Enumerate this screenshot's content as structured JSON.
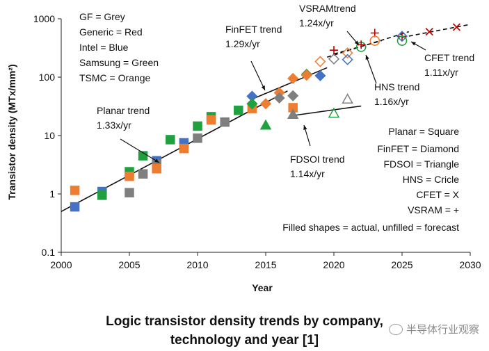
{
  "chart_data": {
    "type": "scatter",
    "title": "Logic transistor density trends by company, technology and year [1]",
    "xlabel": "Year",
    "ylabel": "Transistor density (MTx/mm²)",
    "xlim": [
      2000,
      2030
    ],
    "ylim": [
      0.1,
      1000
    ],
    "yscale": "log",
    "xticks": [
      2000,
      2005,
      2010,
      2015,
      2020,
      2025,
      2030
    ],
    "yticks": [
      {
        "value": 0.1,
        "label": "0.1"
      },
      {
        "value": 1,
        "label": "1"
      },
      {
        "value": 10,
        "label": "10"
      },
      {
        "value": 100,
        "label": "100"
      },
      {
        "value": 1000,
        "label": "1000"
      }
    ],
    "colors": {
      "GF": "#7f7f7f",
      "Generic": "#c00000",
      "Intel": "#4472c4",
      "Samsung": "#21a040",
      "TSMC": "#ed7d31"
    },
    "company_legend": [
      "GF = Grey",
      "Generic = Red",
      "Intel = Blue",
      "Samsung = Green",
      "TSMC = Orange"
    ],
    "shape_legend": [
      "Planar = Square",
      "FinFET = Diamond",
      "FDSOI = Triangle",
      "HNS = Cricle",
      "CFET = X",
      "VSRAM = +",
      "Filled shapes = actual, unfilled = forecast"
    ],
    "trends": [
      {
        "name": "Planar trend",
        "rate": "1.33x/yr",
        "from": [
          2000,
          0.5
        ],
        "to": [
          2016.6,
          58
        ],
        "style": "solid"
      },
      {
        "name": "FinFET trend",
        "rate": "1.29x/yr",
        "from": [
          2014,
          42
        ],
        "to": [
          2019.5,
          145
        ],
        "style": "solid"
      },
      {
        "name": "FDSOI trend",
        "rate": "1.14x/yr",
        "from": [
          2017,
          22
        ],
        "to": [
          2022,
          32
        ],
        "style": "solid"
      },
      {
        "name": "HNS trend",
        "rate": "1.16x/yr",
        "from": [
          2019.5,
          220
        ],
        "to": [
          2025.5,
          600
        ],
        "style": "dashed"
      },
      {
        "name": "CFET trend",
        "rate": "1.11x/yr",
        "from": [
          2025,
          480
        ],
        "to": [
          2030,
          800
        ],
        "style": "dashed"
      },
      {
        "name": "VSRAMtrend",
        "rate": "1.24x/yr",
        "from": [
          2020,
          250
        ],
        "to": [
          2023.5,
          420
        ],
        "style": "dashed"
      }
    ],
    "points": [
      {
        "x": 2001,
        "y": 1.15,
        "shape": "square",
        "company": "TSMC",
        "filled": true
      },
      {
        "x": 2001,
        "y": 0.6,
        "shape": "square",
        "company": "Intel",
        "filled": true
      },
      {
        "x": 2003,
        "y": 1.1,
        "shape": "square",
        "company": "Intel",
        "filled": true
      },
      {
        "x": 2003,
        "y": 0.95,
        "shape": "square",
        "company": "Samsung",
        "filled": true
      },
      {
        "x": 2005,
        "y": 2.4,
        "shape": "square",
        "company": "Samsung",
        "filled": true
      },
      {
        "x": 2005,
        "y": 2.0,
        "shape": "square",
        "company": "TSMC",
        "filled": true
      },
      {
        "x": 2005,
        "y": 1.05,
        "shape": "square",
        "company": "GF",
        "filled": true
      },
      {
        "x": 2006,
        "y": 4.5,
        "shape": "square",
        "company": "Samsung",
        "filled": true
      },
      {
        "x": 2006,
        "y": 2.2,
        "shape": "square",
        "company": "GF",
        "filled": true
      },
      {
        "x": 2007,
        "y": 3.7,
        "shape": "square",
        "company": "Intel",
        "filled": true
      },
      {
        "x": 2007,
        "y": 3.2,
        "shape": "square",
        "company": "GF",
        "filled": true
      },
      {
        "x": 2007,
        "y": 2.7,
        "shape": "square",
        "company": "TSMC",
        "filled": true
      },
      {
        "x": 2008,
        "y": 8.5,
        "shape": "square",
        "company": "Samsung",
        "filled": true
      },
      {
        "x": 2009,
        "y": 7.5,
        "shape": "square",
        "company": "Intel",
        "filled": true
      },
      {
        "x": 2009,
        "y": 6.0,
        "shape": "square",
        "company": "TSMC",
        "filled": true
      },
      {
        "x": 2010,
        "y": 14.5,
        "shape": "square",
        "company": "Samsung",
        "filled": true
      },
      {
        "x": 2010,
        "y": 9.0,
        "shape": "square",
        "company": "GF",
        "filled": true
      },
      {
        "x": 2011,
        "y": 21,
        "shape": "square",
        "company": "Samsung",
        "filled": true
      },
      {
        "x": 2011,
        "y": 18.5,
        "shape": "square",
        "company": "TSMC",
        "filled": true
      },
      {
        "x": 2012,
        "y": 17,
        "shape": "square",
        "company": "GF",
        "filled": true
      },
      {
        "x": 2013,
        "y": 27,
        "shape": "square",
        "company": "Samsung",
        "filled": true
      },
      {
        "x": 2014,
        "y": 29,
        "shape": "square",
        "company": "TSMC",
        "filled": true
      },
      {
        "x": 2014,
        "y": 47,
        "shape": "diamond",
        "company": "Intel",
        "filled": true
      },
      {
        "x": 2014,
        "y": 35,
        "shape": "diamond",
        "company": "Samsung",
        "filled": true
      },
      {
        "x": 2015,
        "y": 35,
        "shape": "diamond",
        "company": "TSMC",
        "filled": true
      },
      {
        "x": 2015,
        "y": 15,
        "shape": "triangle",
        "company": "Samsung",
        "filled": true
      },
      {
        "x": 2016,
        "y": 54,
        "shape": "diamond",
        "company": "TSMC",
        "filled": true
      },
      {
        "x": 2016,
        "y": 44,
        "shape": "diamond",
        "company": "GF",
        "filled": true
      },
      {
        "x": 2017,
        "y": 95,
        "shape": "diamond",
        "company": "TSMC",
        "filled": true
      },
      {
        "x": 2017,
        "y": 48,
        "shape": "diamond",
        "company": "GF",
        "filled": true
      },
      {
        "x": 2017,
        "y": 30,
        "shape": "square",
        "company": "TSMC",
        "filled": true
      },
      {
        "x": 2017,
        "y": 23,
        "shape": "triangle",
        "company": "GF",
        "filled": true
      },
      {
        "x": 2018,
        "y": 112,
        "shape": "diamond",
        "company": "Samsung",
        "filled": true
      },
      {
        "x": 2018,
        "y": 108,
        "shape": "diamond",
        "company": "TSMC",
        "filled": true
      },
      {
        "x": 2019,
        "y": 106,
        "shape": "diamond",
        "company": "Intel",
        "filled": true
      },
      {
        "x": 2019,
        "y": 185,
        "shape": "diamond",
        "company": "TSMC",
        "filled": false
      },
      {
        "x": 2020,
        "y": 24,
        "shape": "triangle",
        "company": "Samsung",
        "filled": false
      },
      {
        "x": 2020,
        "y": 205,
        "shape": "diamond",
        "company": "GF",
        "filled": false
      },
      {
        "x": 2020,
        "y": 290,
        "shape": "plus",
        "company": "Generic",
        "filled": true
      },
      {
        "x": 2021,
        "y": 42,
        "shape": "triangle",
        "company": "GF",
        "filled": false
      },
      {
        "x": 2021,
        "y": 260,
        "shape": "diamond",
        "company": "TSMC",
        "filled": false
      },
      {
        "x": 2021,
        "y": 200,
        "shape": "diamond",
        "company": "Intel",
        "filled": false
      },
      {
        "x": 2022,
        "y": 330,
        "shape": "circle",
        "company": "Samsung",
        "filled": false
      },
      {
        "x": 2022,
        "y": 360,
        "shape": "plus",
        "company": "Generic",
        "filled": true
      },
      {
        "x": 2023,
        "y": 570,
        "shape": "plus",
        "company": "Generic",
        "filled": true
      },
      {
        "x": 2023,
        "y": 420,
        "shape": "circle",
        "company": "TSMC",
        "filled": false
      },
      {
        "x": 2025,
        "y": 500,
        "shape": "plus",
        "company": "Generic",
        "filled": true
      },
      {
        "x": 2025,
        "y": 500,
        "shape": "diamond",
        "company": "Intel",
        "filled": false
      },
      {
        "x": 2025,
        "y": 420,
        "shape": "circle",
        "company": "Samsung",
        "filled": false
      },
      {
        "x": 2027,
        "y": 600,
        "shape": "x",
        "company": "Generic",
        "filled": true
      },
      {
        "x": 2029,
        "y": 720,
        "shape": "x",
        "company": "Generic",
        "filled": true
      }
    ]
  },
  "caption": {
    "line1": "Logic transistor density trends by company,",
    "line2": "technology and year [1]"
  },
  "watermark": "半导体行业观察"
}
